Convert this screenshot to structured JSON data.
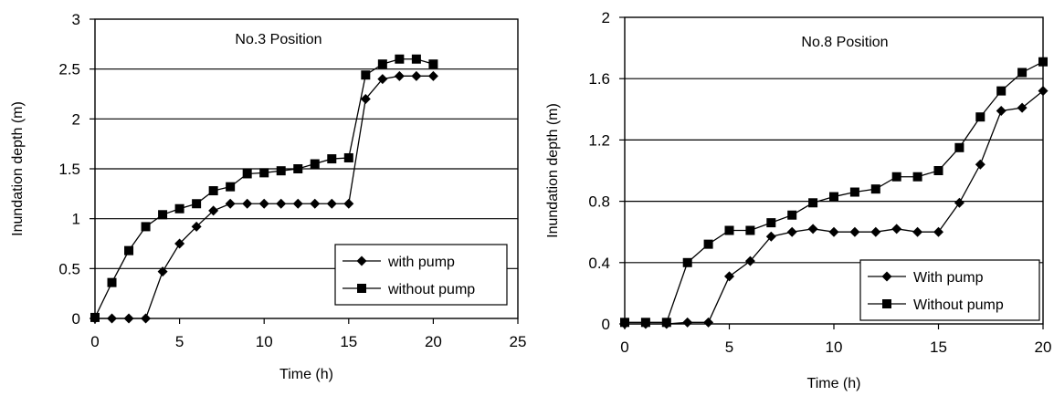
{
  "chart_data": [
    {
      "type": "line",
      "title": "No.3 Position",
      "xlabel": "Time (h)",
      "ylabel": "Inundation depth (m)",
      "xlim": [
        0,
        25
      ],
      "ylim": [
        0,
        3
      ],
      "xticks": [
        "0",
        "5",
        "10",
        "15",
        "20",
        "25"
      ],
      "yticks": [
        "0",
        "0.5",
        "1",
        "1.5",
        "2",
        "2.5",
        "3"
      ],
      "grid": "horizontal",
      "legend_position": "bottom-right",
      "series": [
        {
          "name": "with pump",
          "marker": "diamond",
          "x": [
            0,
            1,
            2,
            3,
            4,
            5,
            6,
            7,
            8,
            9,
            10,
            11,
            12,
            13,
            14,
            15,
            16,
            17,
            18,
            19,
            20
          ],
          "y": [
            0,
            0,
            0,
            0,
            0.47,
            0.75,
            0.92,
            1.08,
            1.15,
            1.15,
            1.15,
            1.15,
            1.15,
            1.15,
            1.15,
            1.15,
            2.2,
            2.4,
            2.43,
            2.43,
            2.43
          ]
        },
        {
          "name": "without pump",
          "marker": "square",
          "x": [
            0,
            1,
            2,
            3,
            4,
            5,
            6,
            7,
            8,
            9,
            10,
            11,
            12,
            13,
            14,
            15,
            16,
            17,
            18,
            19,
            20
          ],
          "y": [
            0.01,
            0.36,
            0.68,
            0.92,
            1.04,
            1.1,
            1.15,
            1.28,
            1.32,
            1.45,
            1.46,
            1.48,
            1.5,
            1.55,
            1.6,
            1.61,
            2.44,
            2.55,
            2.6,
            2.6,
            2.55
          ]
        }
      ]
    },
    {
      "type": "line",
      "title": "No.8 Position",
      "xlabel": "Time (h)",
      "ylabel": "Inundation depth (m)",
      "xlim": [
        0,
        20
      ],
      "ylim": [
        0,
        2
      ],
      "xticks": [
        "0",
        "5",
        "10",
        "15",
        "20"
      ],
      "yticks": [
        "0",
        "0.4",
        "0.8",
        "1.2",
        "1.6",
        "2"
      ],
      "grid": "horizontal",
      "legend_position": "bottom-right",
      "series": [
        {
          "name": "With pump",
          "marker": "diamond",
          "x": [
            0,
            1,
            2,
            3,
            4,
            5,
            6,
            7,
            8,
            9,
            10,
            11,
            12,
            13,
            14,
            15,
            16,
            17,
            18,
            19,
            20
          ],
          "y": [
            0,
            0,
            0,
            0.01,
            0.01,
            0.31,
            0.41,
            0.57,
            0.6,
            0.62,
            0.6,
            0.6,
            0.6,
            0.62,
            0.6,
            0.6,
            0.79,
            1.04,
            1.39,
            1.41,
            1.52
          ]
        },
        {
          "name": "Without pump",
          "marker": "square",
          "x": [
            0,
            1,
            2,
            3,
            4,
            5,
            6,
            7,
            8,
            9,
            10,
            11,
            12,
            13,
            14,
            15,
            16,
            17,
            18,
            19,
            20
          ],
          "y": [
            0.01,
            0.01,
            0.01,
            0.4,
            0.52,
            0.61,
            0.61,
            0.66,
            0.71,
            0.79,
            0.83,
            0.86,
            0.88,
            0.96,
            0.96,
            1.0,
            1.15,
            1.35,
            1.52,
            1.64,
            1.71
          ]
        }
      ]
    }
  ]
}
